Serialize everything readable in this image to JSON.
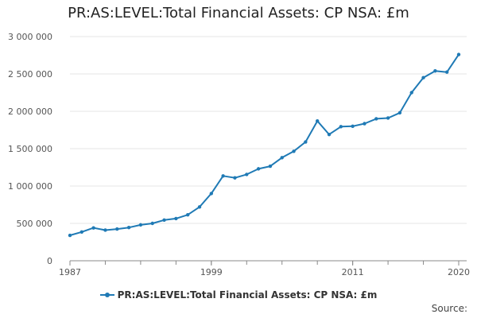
{
  "colors": {
    "series": "#1f7ab5",
    "grid": "#e6e6e6",
    "axis": "#888888"
  },
  "chart_data": {
    "type": "line",
    "title": "PR:AS:LEVEL:Total Financial Assets: CP NSA: £m",
    "xlabel": "",
    "ylabel": "",
    "ylim": [
      0,
      3000000
    ],
    "xlim": [
      1987,
      2020
    ],
    "grid": true,
    "legend_position": "bottom",
    "y_ticks": [
      0,
      500000,
      1000000,
      1500000,
      2000000,
      2500000,
      3000000
    ],
    "y_tick_labels": [
      "0",
      "500 000",
      "1 000 000",
      "1 500 000",
      "2 000 000",
      "2 500 000",
      "3 000 000"
    ],
    "x_ticks": [
      1987,
      1999,
      2011,
      2020
    ],
    "x_tick_labels": [
      "1987",
      "1999",
      "2011",
      "2020"
    ],
    "x": [
      1987,
      1988,
      1989,
      1990,
      1991,
      1992,
      1993,
      1994,
      1995,
      1996,
      1997,
      1998,
      1999,
      2000,
      2001,
      2002,
      2003,
      2004,
      2005,
      2006,
      2007,
      2008,
      2009,
      2010,
      2011,
      2012,
      2013,
      2014,
      2015,
      2016,
      2017,
      2018,
      2019,
      2020
    ],
    "series": [
      {
        "name": "PR:AS:LEVEL:Total Financial Assets: CP NSA: £m",
        "values": [
          340000,
          385000,
          440000,
          410000,
          425000,
          445000,
          480000,
          500000,
          545000,
          565000,
          615000,
          720000,
          900000,
          1135000,
          1110000,
          1155000,
          1230000,
          1265000,
          1380000,
          1465000,
          1590000,
          1870000,
          1690000,
          1795000,
          1800000,
          1835000,
          1900000,
          1910000,
          1980000,
          2250000,
          2450000,
          2540000,
          2525000,
          2760000
        ]
      }
    ]
  },
  "legend": {
    "label": "PR:AS:LEVEL:Total Financial Assets: CP NSA: £m"
  },
  "footer": {
    "source_label": "Source:"
  }
}
